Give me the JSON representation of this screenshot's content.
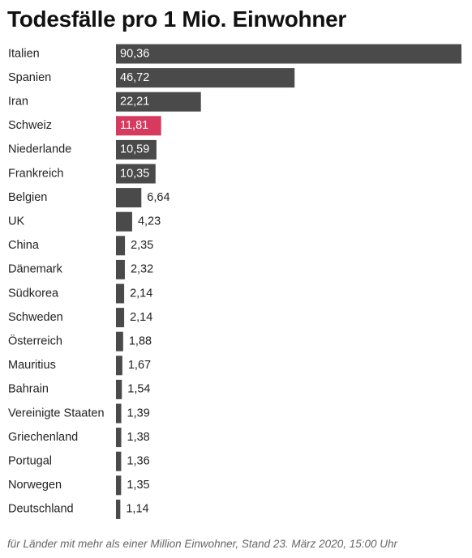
{
  "chart_data": {
    "type": "bar",
    "orientation": "horizontal",
    "title": "Todesfälle pro 1 Mio. Einwohner",
    "categories": [
      "Italien",
      "Spanien",
      "Iran",
      "Schweiz",
      "Niederlande",
      "Frankreich",
      "Belgien",
      "UK",
      "China",
      "Dänemark",
      "Südkorea",
      "Schweden",
      "Österreich",
      "Mauritius",
      "Bahrain",
      "Vereinigte Staaten",
      "Griechenland",
      "Portugal",
      "Norwegen",
      "Deutschland"
    ],
    "values": [
      90.36,
      46.72,
      22.21,
      11.81,
      10.59,
      10.35,
      6.64,
      4.23,
      2.35,
      2.32,
      2.14,
      2.14,
      1.88,
      1.67,
      1.54,
      1.39,
      1.38,
      1.36,
      1.35,
      1.14
    ],
    "value_labels": [
      "90,36",
      "46,72",
      "22,21",
      "11,81",
      "10,59",
      "10,35",
      "6,64",
      "4,23",
      "2,35",
      "2,32",
      "2,14",
      "2,14",
      "1,88",
      "1,67",
      "1,54",
      "1,39",
      "1,38",
      "1,36",
      "1,35",
      "1,14"
    ],
    "highlight_category": "Schweiz",
    "colors": {
      "bar": "#4a4a4a",
      "highlight": "#d63a5e",
      "label_inside": "#ffffff",
      "label_outside": "#222222"
    },
    "xlim": [
      0,
      90.36
    ],
    "grid": false,
    "legend": "none",
    "footnote": "für Länder mit mehr als einer Million Einwohner, Stand 23. März 2020, 15:00 Uhr"
  }
}
